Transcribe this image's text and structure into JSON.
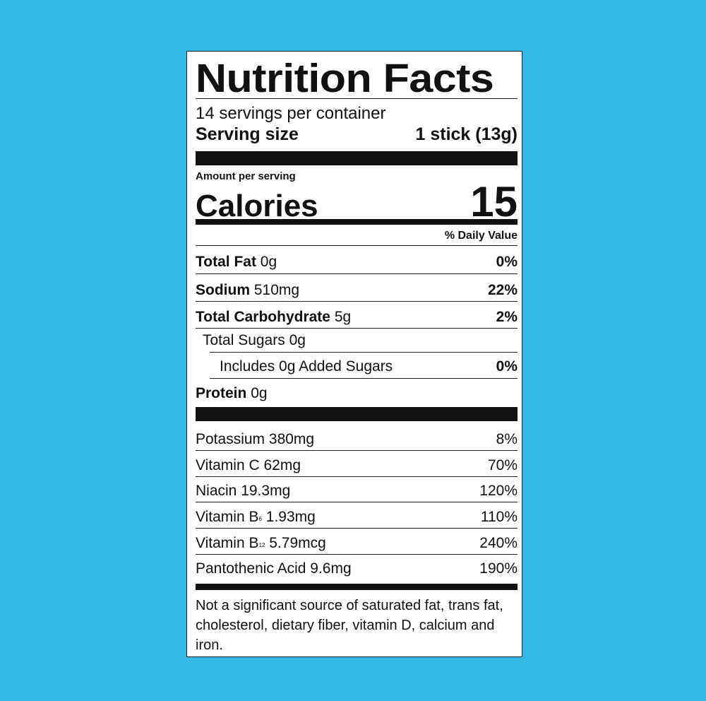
{
  "title": "Nutrition Facts",
  "servings_per_container": "14 servings per container",
  "serving_size": {
    "label": "Serving size",
    "value": "1 stick (13g)"
  },
  "amount_per_serving": "Amount per serving",
  "calories": {
    "label": "Calories",
    "value": "15"
  },
  "daily_value_header": "% Daily Value",
  "nutrients": [
    {
      "name": "Total Fat",
      "amount": "0g",
      "dv": "0%"
    },
    {
      "name": "Sodium",
      "amount": "510mg",
      "dv": "22%"
    },
    {
      "name": "Total Carbohydrate",
      "amount": "5g",
      "dv": "2%"
    },
    {
      "name": "Total Sugars",
      "amount": "0g",
      "dv": ""
    },
    {
      "name": "Includes 0g Added Sugars",
      "amount": "",
      "dv": "0%"
    },
    {
      "name": "Protein",
      "amount": "0g",
      "dv": ""
    }
  ],
  "vitamins": [
    {
      "name": "Potassium",
      "amount": "380mg",
      "dv": "8%"
    },
    {
      "name": "Vitamin C",
      "amount": "62mg",
      "dv": "70%"
    },
    {
      "name": "Niacin",
      "amount": "19.3mg",
      "dv": "120%"
    },
    {
      "name": "Vitamin B",
      "sub": "6",
      "amount": "1.93mg",
      "dv": "110%"
    },
    {
      "name": "Vitamin B",
      "sub": "12",
      "amount": "5.79mcg",
      "dv": "240%"
    },
    {
      "name": "Pantothenic Acid",
      "amount": "9.6mg",
      "dv": "190%"
    }
  ],
  "footnote": "Not a significant source of saturated fat, trans fat, cholesterol, dietary fiber, vitamin D, calcium and iron.",
  "colors": {
    "background": "#33b9e4",
    "label": "#ffffff",
    "ink": "#111111"
  }
}
